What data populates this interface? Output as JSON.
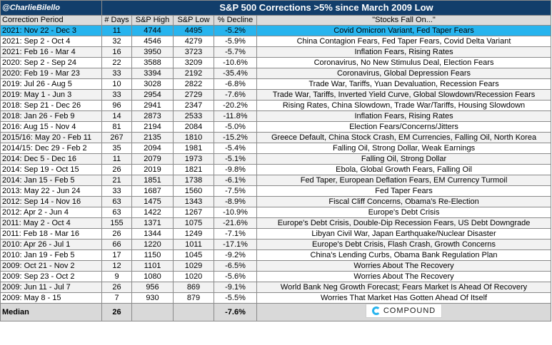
{
  "header": {
    "handle": "@CharlieBilello",
    "title": "S&P 500 Corrections >5% since March 2009 Low"
  },
  "columns": {
    "period": "Correction Period",
    "days": "# Days",
    "high": "S&P High",
    "low": "S&P Low",
    "decline": "% Decline",
    "reason": "\"Stocks Fall On...\""
  },
  "rows": [
    {
      "period": "2021: Nov 22 - Dec 3",
      "days": "11",
      "high": "4744",
      "low": "4495",
      "decline": "-5.2%",
      "reason": "Covid Omicron Variant, Fed Taper Fears",
      "highlight": true
    },
    {
      "period": "2021: Sep 2 - Oct 4",
      "days": "32",
      "high": "4546",
      "low": "4279",
      "decline": "-5.9%",
      "reason": "China Contagion Fears, Fed Taper Fears, Covid Delta Variant"
    },
    {
      "period": "2021: Feb 16 - Mar 4",
      "days": "16",
      "high": "3950",
      "low": "3723",
      "decline": "-5.7%",
      "reason": "Inflation Fears, Rising Rates"
    },
    {
      "period": "2020: Sep 2 - Sep 24",
      "days": "22",
      "high": "3588",
      "low": "3209",
      "decline": "-10.6%",
      "reason": "Coronavirus, No New Stimulus Deal, Election Fears"
    },
    {
      "period": "2020: Feb 19 - Mar 23",
      "days": "33",
      "high": "3394",
      "low": "2192",
      "decline": "-35.4%",
      "reason": "Coronavirus, Global Depression Fears"
    },
    {
      "period": "2019: Jul 26 - Aug 5",
      "days": "10",
      "high": "3028",
      "low": "2822",
      "decline": "-6.8%",
      "reason": "Trade War, Tariffs, Yuan Devaluation, Recession Fears"
    },
    {
      "period": "2019: May 1 - Jun 3",
      "days": "33",
      "high": "2954",
      "low": "2729",
      "decline": "-7.6%",
      "reason": "Trade War, Tariffs, Inverted Yield Curve, Global Slowdown/Recession Fears"
    },
    {
      "period": "2018: Sep 21 - Dec 26",
      "days": "96",
      "high": "2941",
      "low": "2347",
      "decline": "-20.2%",
      "reason": "Rising Rates, China Slowdown, Trade War/Tariffs, Housing Slowdown"
    },
    {
      "period": "2018: Jan 26 - Feb 9",
      "days": "14",
      "high": "2873",
      "low": "2533",
      "decline": "-11.8%",
      "reason": "Inflation Fears, Rising Rates"
    },
    {
      "period": "2016: Aug 15 - Nov 4",
      "days": "81",
      "high": "2194",
      "low": "2084",
      "decline": "-5.0%",
      "reason": "Election Fears/Concerns/Jitters"
    },
    {
      "period": "2015/16: May 20 - Feb 11",
      "days": "267",
      "high": "2135",
      "low": "1810",
      "decline": "-15.2%",
      "reason": "Greece Default, China Stock Crash, EM Currencies, Falling Oil, North Korea"
    },
    {
      "period": "2014/15: Dec 29 - Feb 2",
      "days": "35",
      "high": "2094",
      "low": "1981",
      "decline": "-5.4%",
      "reason": "Falling Oil, Strong Dollar, Weak Earnings"
    },
    {
      "period": "2014: Dec 5 - Dec 16",
      "days": "11",
      "high": "2079",
      "low": "1973",
      "decline": "-5.1%",
      "reason": "Falling Oil, Strong Dollar"
    },
    {
      "period": "2014: Sep 19 - Oct 15",
      "days": "26",
      "high": "2019",
      "low": "1821",
      "decline": "-9.8%",
      "reason": "Ebola, Global Growth Fears, Falling Oil"
    },
    {
      "period": "2014: Jan 15 - Feb 5",
      "days": "21",
      "high": "1851",
      "low": "1738",
      "decline": "-6.1%",
      "reason": "Fed Taper, European Deflation Fears, EM Currency Turmoil"
    },
    {
      "period": "2013: May 22 - Jun 24",
      "days": "33",
      "high": "1687",
      "low": "1560",
      "decline": "-7.5%",
      "reason": "Fed Taper Fears"
    },
    {
      "period": "2012: Sep 14 - Nov 16",
      "days": "63",
      "high": "1475",
      "low": "1343",
      "decline": "-8.9%",
      "reason": "Fiscal Cliff Concerns, Obama's Re-Election"
    },
    {
      "period": "2012: Apr 2 - Jun 4",
      "days": "63",
      "high": "1422",
      "low": "1267",
      "decline": "-10.9%",
      "reason": "Europe's Debt Crisis"
    },
    {
      "period": "2011: May 2 - Oct 4",
      "days": "155",
      "high": "1371",
      "low": "1075",
      "decline": "-21.6%",
      "reason": "Europe's Debt Crisis, Double-Dip Recession Fears, US Debt Downgrade"
    },
    {
      "period": "2011: Feb 18 - Mar 16",
      "days": "26",
      "high": "1344",
      "low": "1249",
      "decline": "-7.1%",
      "reason": "Libyan Civil War, Japan Earthquake/Nuclear Disaster"
    },
    {
      "period": "2010: Apr 26 - Jul 1",
      "days": "66",
      "high": "1220",
      "low": "1011",
      "decline": "-17.1%",
      "reason": "Europe's Debt Crisis, Flash Crash, Growth Concerns"
    },
    {
      "period": "2010: Jan 19 - Feb 5",
      "days": "17",
      "high": "1150",
      "low": "1045",
      "decline": "-9.2%",
      "reason": "China's Lending Curbs, Obama Bank Regulation Plan"
    },
    {
      "period": "2009: Oct 21 - Nov 2",
      "days": "12",
      "high": "1101",
      "low": "1029",
      "decline": "-6.5%",
      "reason": "Worries About The Recovery"
    },
    {
      "period": "2009: Sep 23 - Oct 2",
      "days": "9",
      "high": "1080",
      "low": "1020",
      "decline": "-5.6%",
      "reason": "Worries About The Recovery"
    },
    {
      "period": "2009: Jun 11 - Jul 7",
      "days": "26",
      "high": "956",
      "low": "869",
      "decline": "-9.1%",
      "reason": "World Bank Neg Growth Forecast; Fears Market Is Ahead Of Recovery"
    },
    {
      "period": "2009: May 8 - 15",
      "days": "7",
      "high": "930",
      "low": "879",
      "decline": "-5.5%",
      "reason": "Worries That Market Has Gotten Ahead Of Itself"
    }
  ],
  "median": {
    "label": "Median",
    "days": "26",
    "decline": "-7.6%"
  },
  "logo": {
    "text": "COMPOUND",
    "icon": "compound-logo-icon"
  },
  "colors": {
    "header_bg": "#123e6b",
    "highlight_row": "#27b4ee",
    "median_bg": "#d9d9d9"
  }
}
